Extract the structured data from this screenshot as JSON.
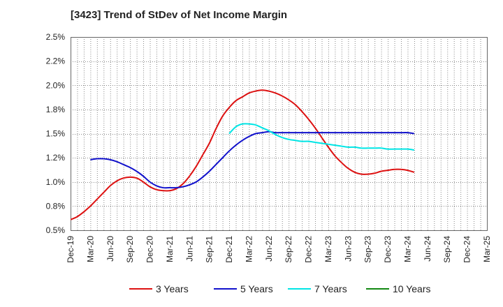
{
  "chart_data": {
    "type": "line",
    "title": "[3423]  Trend of StDev of Net Income Margin",
    "xlabel": "",
    "ylabel": "",
    "x_ticks": [
      "Dec-19",
      "Mar-20",
      "Jun-20",
      "Sep-20",
      "Dec-20",
      "Mar-21",
      "Jun-21",
      "Sep-21",
      "Dec-21",
      "Mar-22",
      "Jun-22",
      "Sep-22",
      "Dec-22",
      "Mar-23",
      "Jun-23",
      "Sep-23",
      "Dec-23",
      "Mar-24",
      "Jun-24",
      "Sep-24",
      "Dec-24",
      "Mar-25"
    ],
    "y_ticks": [
      "0.5%",
      "0.8%",
      "1.0%",
      "1.2%",
      "1.5%",
      "1.8%",
      "2.0%",
      "2.2%",
      "2.5%"
    ],
    "y_tick_values": [
      0.5,
      0.75,
      1.0,
      1.25,
      1.5,
      1.75,
      2.0,
      2.25,
      2.5
    ],
    "ylim": [
      0.5,
      2.5
    ],
    "grid": true,
    "legend_position": "bottom",
    "series": [
      {
        "name": "3 Years",
        "color": "#dd1111",
        "points": [
          [
            "Dec-19",
            0.61
          ],
          [
            "Jan-20",
            0.64
          ],
          [
            "Feb-20",
            0.69
          ],
          [
            "Mar-20",
            0.75
          ],
          [
            "Apr-20",
            0.82
          ],
          [
            "May-20",
            0.89
          ],
          [
            "Jun-20",
            0.96
          ],
          [
            "Jul-20",
            1.01
          ],
          [
            "Aug-20",
            1.04
          ],
          [
            "Sep-20",
            1.05
          ],
          [
            "Oct-20",
            1.04
          ],
          [
            "Nov-20",
            1.0
          ],
          [
            "Dec-20",
            0.95
          ],
          [
            "Jan-21",
            0.92
          ],
          [
            "Feb-21",
            0.91
          ],
          [
            "Mar-21",
            0.91
          ],
          [
            "Apr-21",
            0.93
          ],
          [
            "May-21",
            0.98
          ],
          [
            "Jun-21",
            1.06
          ],
          [
            "Jul-21",
            1.16
          ],
          [
            "Aug-21",
            1.28
          ],
          [
            "Sep-21",
            1.4
          ],
          [
            "Oct-21",
            1.55
          ],
          [
            "Nov-21",
            1.68
          ],
          [
            "Dec-21",
            1.77
          ],
          [
            "Jan-22",
            1.84
          ],
          [
            "Feb-22",
            1.88
          ],
          [
            "Mar-22",
            1.92
          ],
          [
            "Apr-22",
            1.94
          ],
          [
            "May-22",
            1.95
          ],
          [
            "Jun-22",
            1.94
          ],
          [
            "Jul-22",
            1.92
          ],
          [
            "Aug-22",
            1.89
          ],
          [
            "Sep-22",
            1.85
          ],
          [
            "Oct-22",
            1.8
          ],
          [
            "Nov-22",
            1.73
          ],
          [
            "Dec-22",
            1.65
          ],
          [
            "Jan-23",
            1.56
          ],
          [
            "Feb-23",
            1.46
          ],
          [
            "Mar-23",
            1.36
          ],
          [
            "Apr-23",
            1.27
          ],
          [
            "May-23",
            1.2
          ],
          [
            "Jun-23",
            1.14
          ],
          [
            "Jul-23",
            1.1
          ],
          [
            "Aug-23",
            1.08
          ],
          [
            "Sep-23",
            1.08
          ],
          [
            "Oct-23",
            1.09
          ],
          [
            "Nov-23",
            1.11
          ],
          [
            "Dec-23",
            1.12
          ],
          [
            "Jan-24",
            1.13
          ],
          [
            "Feb-24",
            1.13
          ],
          [
            "Mar-24",
            1.12
          ],
          [
            "Apr-24",
            1.1
          ]
        ]
      },
      {
        "name": "5 Years",
        "color": "#1111cc",
        "points": [
          [
            "Mar-20",
            1.23
          ],
          [
            "Apr-20",
            1.24
          ],
          [
            "May-20",
            1.24
          ],
          [
            "Jun-20",
            1.23
          ],
          [
            "Jul-20",
            1.21
          ],
          [
            "Aug-20",
            1.18
          ],
          [
            "Sep-20",
            1.15
          ],
          [
            "Oct-20",
            1.11
          ],
          [
            "Nov-20",
            1.06
          ],
          [
            "Dec-20",
            1.0
          ],
          [
            "Jan-21",
            0.96
          ],
          [
            "Feb-21",
            0.94
          ],
          [
            "Mar-21",
            0.94
          ],
          [
            "Apr-21",
            0.94
          ],
          [
            "May-21",
            0.95
          ],
          [
            "Jun-21",
            0.97
          ],
          [
            "Jul-21",
            1.0
          ],
          [
            "Aug-21",
            1.05
          ],
          [
            "Sep-21",
            1.11
          ],
          [
            "Oct-21",
            1.18
          ],
          [
            "Nov-21",
            1.25
          ],
          [
            "Dec-21",
            1.32
          ],
          [
            "Jan-22",
            1.38
          ],
          [
            "Feb-22",
            1.43
          ],
          [
            "Mar-22",
            1.47
          ],
          [
            "Apr-22",
            1.5
          ],
          [
            "May-22",
            1.51
          ],
          [
            "Jun-22",
            1.52
          ],
          [
            "Jul-22",
            1.51
          ],
          [
            "Aug-22",
            1.51
          ],
          [
            "Sep-22",
            1.51
          ],
          [
            "Oct-22",
            1.51
          ],
          [
            "Nov-22",
            1.51
          ],
          [
            "Dec-22",
            1.51
          ],
          [
            "Jan-23",
            1.51
          ],
          [
            "Feb-23",
            1.51
          ],
          [
            "Mar-23",
            1.51
          ],
          [
            "Apr-23",
            1.51
          ],
          [
            "May-23",
            1.51
          ],
          [
            "Jun-23",
            1.51
          ],
          [
            "Jul-23",
            1.51
          ],
          [
            "Aug-23",
            1.51
          ],
          [
            "Sep-23",
            1.51
          ],
          [
            "Oct-23",
            1.51
          ],
          [
            "Nov-23",
            1.51
          ],
          [
            "Dec-23",
            1.51
          ],
          [
            "Jan-24",
            1.51
          ],
          [
            "Feb-24",
            1.51
          ],
          [
            "Mar-24",
            1.51
          ],
          [
            "Apr-24",
            1.5
          ]
        ]
      },
      {
        "name": "7 Years",
        "color": "#00e5e5",
        "points": [
          [
            "Dec-21",
            1.5
          ],
          [
            "Jan-22",
            1.57
          ],
          [
            "Feb-22",
            1.6
          ],
          [
            "Mar-22",
            1.6
          ],
          [
            "Apr-22",
            1.59
          ],
          [
            "May-22",
            1.56
          ],
          [
            "Jun-22",
            1.53
          ],
          [
            "Jul-22",
            1.49
          ],
          [
            "Aug-22",
            1.46
          ],
          [
            "Sep-22",
            1.44
          ],
          [
            "Oct-22",
            1.43
          ],
          [
            "Nov-22",
            1.42
          ],
          [
            "Dec-22",
            1.42
          ],
          [
            "Jan-23",
            1.41
          ],
          [
            "Feb-23",
            1.4
          ],
          [
            "Mar-23",
            1.39
          ],
          [
            "Apr-23",
            1.38
          ],
          [
            "May-23",
            1.37
          ],
          [
            "Jun-23",
            1.36
          ],
          [
            "Jul-23",
            1.36
          ],
          [
            "Aug-23",
            1.35
          ],
          [
            "Sep-23",
            1.35
          ],
          [
            "Oct-23",
            1.35
          ],
          [
            "Nov-23",
            1.35
          ],
          [
            "Dec-23",
            1.34
          ],
          [
            "Jan-24",
            1.34
          ],
          [
            "Feb-24",
            1.34
          ],
          [
            "Mar-24",
            1.34
          ],
          [
            "Apr-24",
            1.33
          ]
        ]
      },
      {
        "name": "10 Years",
        "color": "#118811",
        "points": []
      }
    ]
  }
}
